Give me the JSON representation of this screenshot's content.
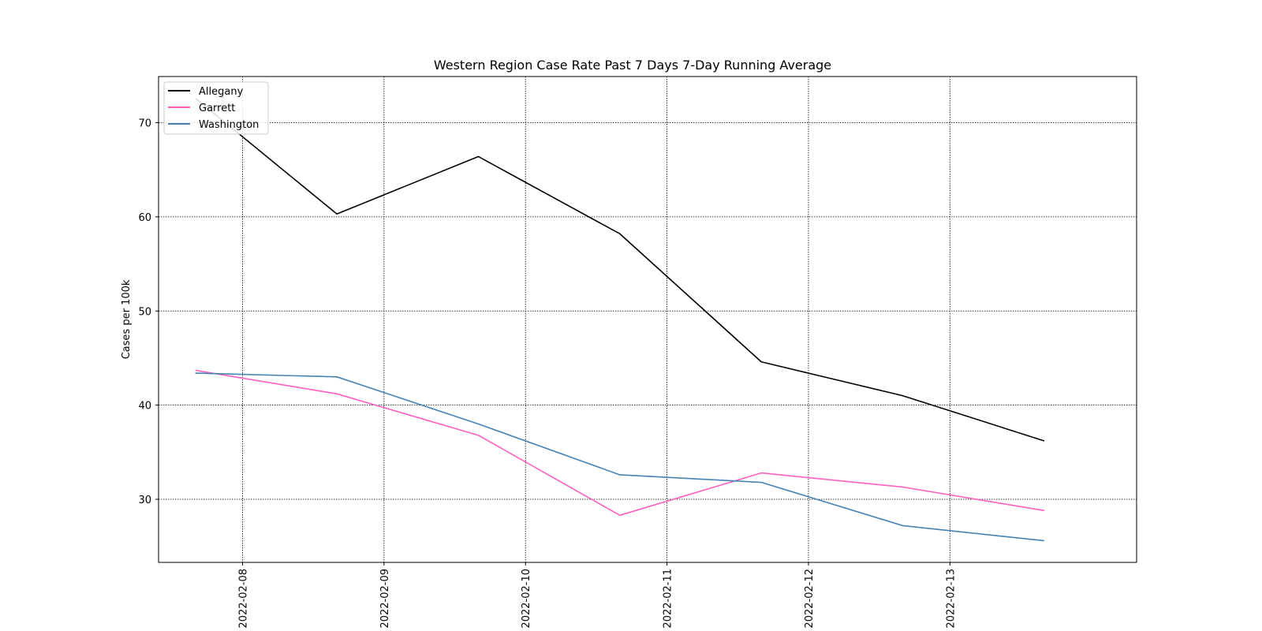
{
  "chart_data": {
    "type": "line",
    "title": "Western Region Case Rate  Past 7 Days 7-Day Running Average",
    "xlabel": "",
    "ylabel": "Cases per 100k",
    "x": [
      "2022-02-07 16:00",
      "2022-02-08 16:00",
      "2022-02-09 16:00",
      "2022-02-10 16:00",
      "2022-02-11 16:00",
      "2022-02-12 16:00",
      "2022-02-13 16:00"
    ],
    "x_ticks": [
      "2022-02-08",
      "2022-02-09",
      "2022-02-10",
      "2022-02-11",
      "2022-02-12",
      "2022-02-13"
    ],
    "xlim": [
      "2022-02-07 09:45",
      "2022-02-14 07:40"
    ],
    "ylim": [
      23.3,
      74.9
    ],
    "y_ticks": [
      30,
      40,
      50,
      60,
      70
    ],
    "grid": true,
    "legend_position": "top-left",
    "series": [
      {
        "name": "Allegany",
        "color": "#000000",
        "values": [
          72.6,
          60.3,
          66.4,
          58.2,
          44.6,
          41.0,
          36.2
        ]
      },
      {
        "name": "Garrett",
        "color": "#ff5ebf",
        "values": [
          43.7,
          41.2,
          36.8,
          28.3,
          32.8,
          31.3,
          28.8
        ]
      },
      {
        "name": "Washington",
        "color": "#4682b4",
        "values": [
          43.4,
          43.0,
          38.0,
          32.6,
          31.8,
          27.2,
          25.6
        ]
      }
    ]
  }
}
